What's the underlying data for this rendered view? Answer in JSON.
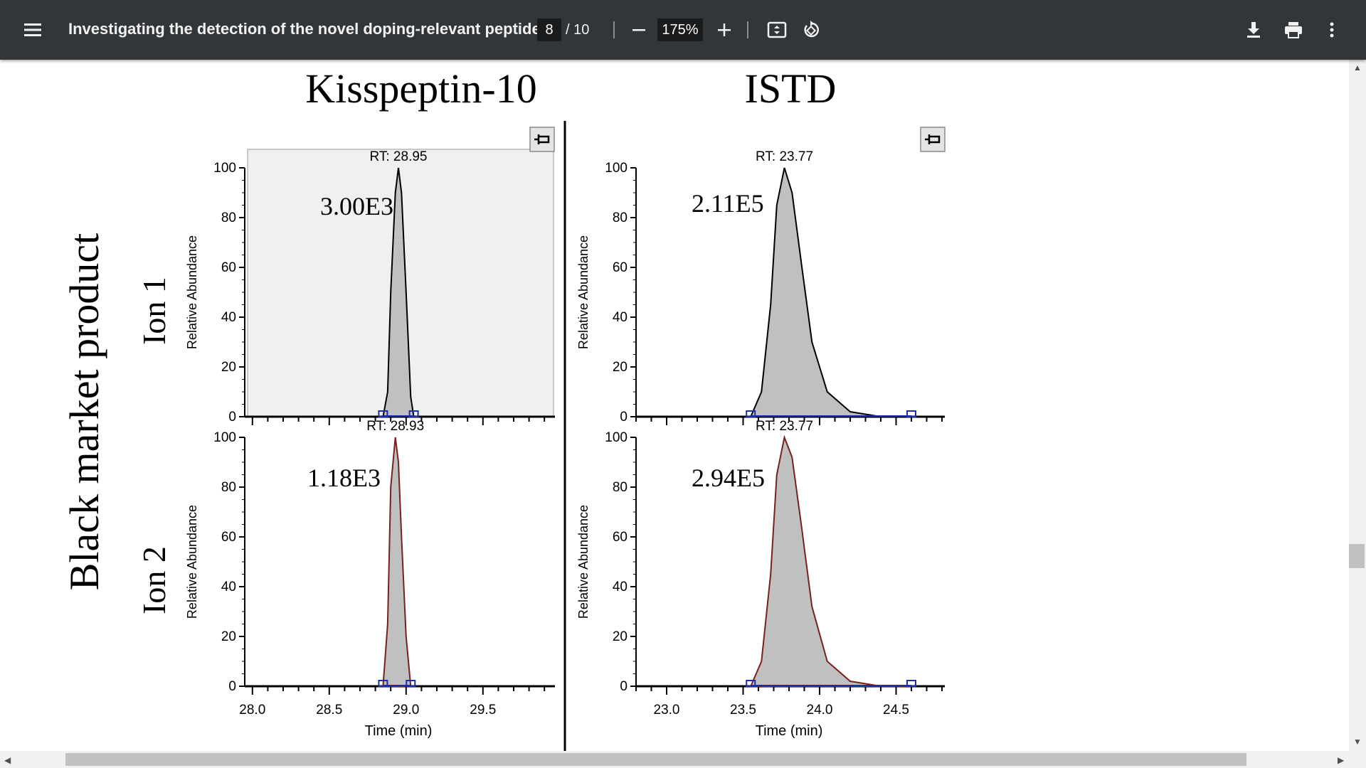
{
  "toolbar": {
    "title": "Investigating the detection of the novel doping-relevant peptide...",
    "page_current": "8",
    "page_total": "/ 10",
    "zoom": "175%",
    "icons": [
      "menu-icon",
      "minus-icon",
      "plus-icon",
      "fit-page-icon",
      "rotate-icon",
      "download-icon",
      "print-icon",
      "more-vert-icon"
    ]
  },
  "figure": {
    "col_headers": [
      "Kisspeptin-10",
      "ISTD"
    ],
    "row_group_label": "Black market product",
    "row_labels": [
      "Ion 1",
      "Ion 2"
    ],
    "y_axis_label": "Relative Abundance",
    "x_axis_label": "Time (min)"
  },
  "chart_data": [
    {
      "type": "line",
      "title": "Kisspeptin-10 Ion 1",
      "annotation": "RT: 28.95",
      "intensity": "3.00E3",
      "xlim": [
        27.95,
        29.95
      ],
      "ylim": [
        0,
        100
      ],
      "yticks": [
        0,
        20,
        40,
        60,
        80,
        100
      ],
      "x": [
        28.85,
        28.88,
        28.9,
        28.93,
        28.95,
        28.97,
        29.0,
        29.03,
        29.05
      ],
      "y": [
        0,
        10,
        50,
        90,
        100,
        90,
        50,
        8,
        0
      ],
      "color": "#000000"
    },
    {
      "type": "line",
      "title": "ISTD Ion 1",
      "annotation": "RT: 23.77",
      "intensity": "2.11E5",
      "xlim": [
        22.8,
        24.8
      ],
      "ylim": [
        0,
        100
      ],
      "yticks": [
        0,
        20,
        40,
        60,
        80,
        100
      ],
      "x": [
        23.55,
        23.62,
        23.68,
        23.72,
        23.77,
        23.82,
        23.88,
        23.95,
        24.05,
        24.2,
        24.4,
        24.6
      ],
      "y": [
        0,
        10,
        45,
        85,
        100,
        90,
        62,
        30,
        10,
        2,
        0,
        0
      ],
      "color": "#000000"
    },
    {
      "type": "line",
      "title": "Kisspeptin-10 Ion 2",
      "annotation": "RT: 28.93",
      "intensity": "1.18E3",
      "xlim": [
        27.95,
        29.95
      ],
      "ylim": [
        0,
        100
      ],
      "yticks": [
        0,
        20,
        40,
        60,
        80,
        100
      ],
      "xticks": [
        "28.0",
        "28.5",
        "29.0",
        "29.5"
      ],
      "x": [
        28.85,
        28.88,
        28.9,
        28.93,
        28.95,
        28.97,
        29.0,
        29.03
      ],
      "y": [
        0,
        25,
        80,
        100,
        90,
        60,
        20,
        0
      ],
      "color": "#7a1f1f"
    },
    {
      "type": "line",
      "title": "ISTD Ion 2",
      "annotation": "RT: 23.77",
      "intensity": "2.94E5",
      "xlim": [
        22.8,
        24.8
      ],
      "ylim": [
        0,
        100
      ],
      "yticks": [
        0,
        20,
        40,
        60,
        80,
        100
      ],
      "xticks": [
        "23.0",
        "23.5",
        "24.0",
        "24.5"
      ],
      "x": [
        23.55,
        23.62,
        23.68,
        23.72,
        23.77,
        23.82,
        23.88,
        23.95,
        24.05,
        24.2,
        24.4,
        24.6
      ],
      "y": [
        0,
        10,
        45,
        85,
        100,
        92,
        65,
        32,
        10,
        2,
        0,
        0
      ],
      "color": "#7a1f1f"
    }
  ]
}
